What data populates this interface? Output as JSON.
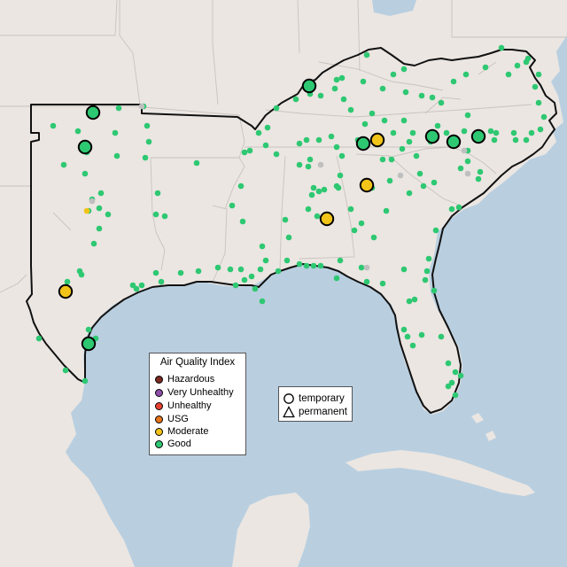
{
  "map": {
    "land_color": "#ebe6e2",
    "water_color": "#b9cfe0",
    "boundary_color": "#111111",
    "no_data_color": "#bfbfbf"
  },
  "aqi_legend": {
    "title": "Air Quality Index",
    "categories": [
      {
        "label": "Hazardous",
        "color": "#7a2a22"
      },
      {
        "label": "Very Unhealthy",
        "color": "#8e4fa8"
      },
      {
        "label": "Unhealthy",
        "color": "#e8402f"
      },
      {
        "label": "USG",
        "color": "#e8741a"
      },
      {
        "label": "Moderate",
        "color": "#f2c319"
      },
      {
        "label": "Good",
        "color": "#2ec872"
      }
    ]
  },
  "monitor_legend": {
    "items": [
      {
        "label": "temporary",
        "shape": "circle"
      },
      {
        "label": "permanent",
        "shape": "triangle"
      }
    ]
  },
  "temporary_monitors": [
    {
      "aqi": "Good"
    },
    {
      "aqi": "Good"
    },
    {
      "aqi": "Good"
    },
    {
      "aqi": "Good"
    },
    {
      "aqi": "Good"
    },
    {
      "aqi": "Good"
    },
    {
      "aqi": "Good"
    },
    {
      "aqi": "Good"
    },
    {
      "aqi": "Moderate"
    },
    {
      "aqi": "Moderate"
    },
    {
      "aqi": "Moderate"
    },
    {
      "aqi": "Moderate"
    }
  ]
}
